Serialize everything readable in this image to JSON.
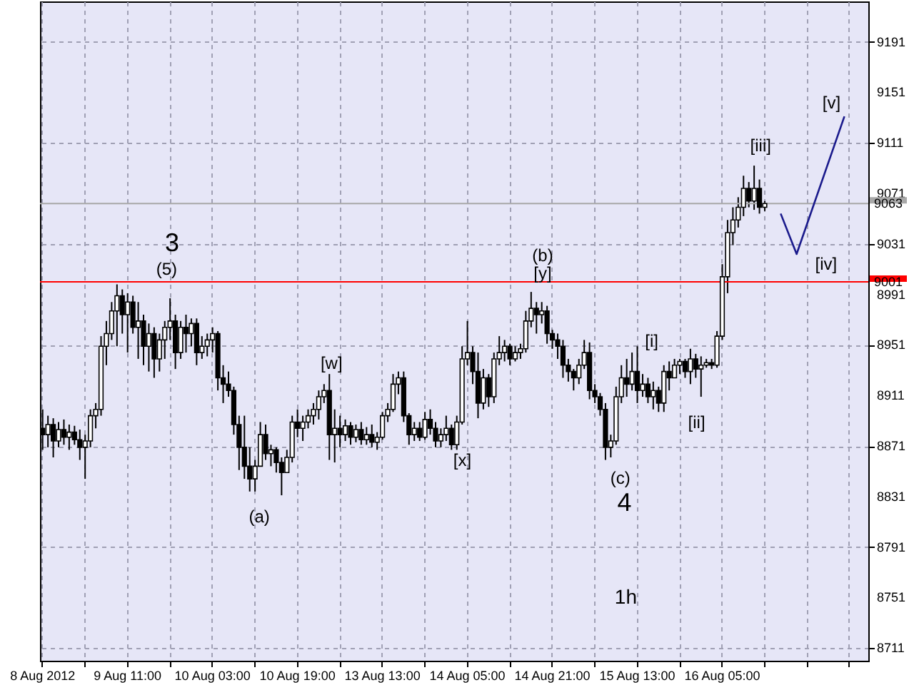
{
  "chart_data": {
    "type": "candlestick",
    "color": "#000000",
    "categories": [
      "8 Aug 2012",
      null,
      null,
      null,
      null,
      null,
      null,
      null,
      null,
      null,
      null,
      null,
      null,
      null,
      null,
      null,
      "9 Aug 11:00",
      null,
      null,
      null,
      null,
      null,
      null,
      null,
      null,
      null,
      null,
      null,
      null,
      null,
      null,
      null,
      "10 Aug 03:00",
      null,
      null,
      null,
      null,
      null,
      null,
      null,
      null,
      null,
      null,
      null,
      null,
      null,
      null,
      null,
      "10 Aug 19:00",
      null,
      null,
      null,
      null,
      null,
      null,
      null,
      null,
      null,
      null,
      null,
      null,
      null,
      null,
      null,
      "13 Aug 13:00",
      null,
      null,
      null,
      null,
      null,
      null,
      null,
      null,
      null,
      null,
      null,
      null,
      null,
      null,
      null,
      "14 Aug 05:00",
      null,
      null,
      null,
      null,
      null,
      null,
      null,
      null,
      null,
      null,
      null,
      null,
      null,
      null,
      null,
      "14 Aug 21:00",
      null,
      null,
      null,
      null,
      null,
      null,
      null,
      null,
      null,
      null,
      null,
      null,
      null,
      null,
      null,
      "15 Aug 13:00",
      null,
      null,
      null,
      null,
      null,
      null,
      null,
      null,
      null,
      null,
      null,
      null,
      null,
      null,
      null,
      "16 Aug 05:00",
      null,
      null,
      null,
      null,
      null,
      null,
      null,
      null,
      null,
      null,
      null,
      null,
      null,
      null,
      null,
      null,
      null,
      null,
      null,
      null,
      null,
      null,
      null,
      null,
      null,
      null,
      null
    ],
    "ohlc": [
      [
        8885,
        8900,
        8868,
        8880
      ],
      [
        8880,
        8895,
        8870,
        8888
      ],
      [
        8888,
        8893,
        8862,
        8875
      ],
      [
        8875,
        8890,
        8870,
        8884
      ],
      [
        8884,
        8892,
        8872,
        8878
      ],
      [
        8878,
        8888,
        8868,
        8882
      ],
      [
        8882,
        8887,
        8872,
        8876
      ],
      [
        8876,
        8884,
        8860,
        8870
      ],
      [
        8870,
        8880,
        8845,
        8875
      ],
      [
        8875,
        8900,
        8870,
        8895
      ],
      [
        8895,
        8905,
        8885,
        8900
      ],
      [
        8900,
        8958,
        8895,
        8950
      ],
      [
        8950,
        8970,
        8935,
        8960
      ],
      [
        8960,
        8985,
        8955,
        8978
      ],
      [
        8978,
        8999,
        8950,
        8990
      ],
      [
        8990,
        8995,
        8960,
        8975
      ],
      [
        8975,
        8992,
        8945,
        8985
      ],
      [
        8985,
        8990,
        8960,
        8965
      ],
      [
        8965,
        8985,
        8940,
        8970
      ],
      [
        8970,
        8975,
        8935,
        8950
      ],
      [
        8950,
        8968,
        8930,
        8960
      ],
      [
        8960,
        8965,
        8925,
        8940
      ],
      [
        8940,
        8960,
        8930,
        8955
      ],
      [
        8955,
        8970,
        8940,
        8965
      ],
      [
        8965,
        8988,
        8955,
        8970
      ],
      [
        8970,
        8975,
        8932,
        8945
      ],
      [
        8945,
        8970,
        8940,
        8965
      ],
      [
        8965,
        8975,
        8945,
        8960
      ],
      [
        8960,
        8972,
        8950,
        8968
      ],
      [
        8968,
        8972,
        8935,
        8945
      ],
      [
        8945,
        8958,
        8940,
        8950
      ],
      [
        8950,
        8960,
        8942,
        8955
      ],
      [
        8955,
        8965,
        8945,
        8960
      ],
      [
        8960,
        8962,
        8915,
        8925
      ],
      [
        8925,
        8935,
        8905,
        8920
      ],
      [
        8920,
        8930,
        8910,
        8915
      ],
      [
        8915,
        8918,
        8880,
        8888
      ],
      [
        8888,
        8895,
        8852,
        8870
      ],
      [
        8870,
        8895,
        8845,
        8855
      ],
      [
        8855,
        8870,
        8835,
        8845
      ],
      [
        8845,
        8860,
        8835,
        8855
      ],
      [
        8855,
        8890,
        8855,
        8880
      ],
      [
        8880,
        8888,
        8860,
        8865
      ],
      [
        8865,
        8872,
        8855,
        8868
      ],
      [
        8868,
        8870,
        8850,
        8858
      ],
      [
        8858,
        8862,
        8832,
        8850
      ],
      [
        8850,
        8868,
        8850,
        8862
      ],
      [
        8862,
        8895,
        8858,
        8890
      ],
      [
        8890,
        8900,
        8878,
        8885
      ],
      [
        8885,
        8895,
        8875,
        8890
      ],
      [
        8890,
        8900,
        8885,
        8895
      ],
      [
        8895,
        8905,
        8888,
        8900
      ],
      [
        8900,
        8915,
        8892,
        8910
      ],
      [
        8910,
        8920,
        8905,
        8915
      ],
      [
        8915,
        8928,
        8860,
        8880
      ],
      [
        8880,
        8900,
        8858,
        8885
      ],
      [
        8885,
        8895,
        8870,
        8880
      ],
      [
        8880,
        8892,
        8875,
        8887
      ],
      [
        8887,
        8890,
        8872,
        8878
      ],
      [
        8878,
        8888,
        8874,
        8884
      ],
      [
        8884,
        8890,
        8872,
        8876
      ],
      [
        8876,
        8886,
        8872,
        8880
      ],
      [
        8880,
        8888,
        8870,
        8874
      ],
      [
        8874,
        8882,
        8868,
        8878
      ],
      [
        8878,
        8898,
        8876,
        8895
      ],
      [
        8895,
        8905,
        8890,
        8900
      ],
      [
        8900,
        8928,
        8898,
        8920
      ],
      [
        8920,
        8930,
        8912,
        8925
      ],
      [
        8925,
        8930,
        8890,
        8895
      ],
      [
        8895,
        8897,
        8872,
        8880
      ],
      [
        8880,
        8890,
        8875,
        8885
      ],
      [
        8885,
        8890,
        8875,
        8878
      ],
      [
        8878,
        8898,
        8876,
        8892
      ],
      [
        8892,
        8900,
        8880,
        8885
      ],
      [
        8885,
        8890,
        8870,
        8875
      ],
      [
        8875,
        8885,
        8870,
        8880
      ],
      [
        8880,
        8895,
        8875,
        8885
      ],
      [
        8885,
        8888,
        8868,
        8872
      ],
      [
        8872,
        8895,
        8868,
        8890
      ],
      [
        8890,
        8950,
        8888,
        8940
      ],
      [
        8940,
        8970,
        8935,
        8945
      ],
      [
        8945,
        8950,
        8920,
        8930
      ],
      [
        8930,
        8945,
        8893,
        8905
      ],
      [
        8905,
        8932,
        8900,
        8925
      ],
      [
        8925,
        8928,
        8902,
        8910
      ],
      [
        8910,
        8945,
        8905,
        8940
      ],
      [
        8940,
        8958,
        8935,
        8945
      ],
      [
        8945,
        8955,
        8938,
        8950
      ],
      [
        8950,
        8952,
        8935,
        8940
      ],
      [
        8940,
        8950,
        8938,
        8945
      ],
      [
        8945,
        8952,
        8940,
        8948
      ],
      [
        8948,
        8978,
        8945,
        8970
      ],
      [
        8970,
        8993,
        8965,
        8980
      ],
      [
        8980,
        8985,
        8960,
        8975
      ],
      [
        8975,
        8985,
        8968,
        8978
      ],
      [
        8978,
        8982,
        8952,
        8960
      ],
      [
        8960,
        8963,
        8948,
        8955
      ],
      [
        8955,
        8960,
        8940,
        8950
      ],
      [
        8950,
        8955,
        8925,
        8935
      ],
      [
        8935,
        8940,
        8922,
        8930
      ],
      [
        8930,
        8932,
        8915,
        8925
      ],
      [
        8925,
        8940,
        8920,
        8935
      ],
      [
        8935,
        8955,
        8932,
        8945
      ],
      [
        8945,
        8953,
        8908,
        8915
      ],
      [
        8915,
        8920,
        8905,
        8910
      ],
      [
        8910,
        8913,
        8895,
        8900
      ],
      [
        8900,
        8905,
        8860,
        8870
      ],
      [
        8870,
        8880,
        8862,
        8875
      ],
      [
        8875,
        8918,
        8872,
        8910
      ],
      [
        8910,
        8935,
        8905,
        8925
      ],
      [
        8925,
        8940,
        8910,
        8920
      ],
      [
        8920,
        8945,
        8915,
        8930
      ],
      [
        8930,
        8950,
        8905,
        8915
      ],
      [
        8915,
        8928,
        8910,
        8920
      ],
      [
        8920,
        8925,
        8905,
        8910
      ],
      [
        8910,
        8922,
        8900,
        8915
      ],
      [
        8915,
        8918,
        8898,
        8905
      ],
      [
        8905,
        8935,
        8898,
        8930
      ],
      [
        8930,
        8938,
        8915,
        8925
      ],
      [
        8925,
        8940,
        8925,
        8935
      ],
      [
        8935,
        8940,
        8928,
        8938
      ],
      [
        8938,
        8940,
        8925,
        8930
      ],
      [
        8930,
        8948,
        8920,
        8940
      ],
      [
        8940,
        8944,
        8925,
        8932
      ],
      [
        8932,
        8942,
        8910,
        8935
      ],
      [
        8935,
        8940,
        8933,
        8937
      ],
      [
        8937,
        8940,
        8932,
        8935
      ],
      [
        8935,
        8962,
        8933,
        8958
      ],
      [
        8958,
        9015,
        8955,
        9005
      ],
      [
        9005,
        9050,
        8992,
        9040
      ],
      [
        9040,
        9060,
        9030,
        9050
      ],
      [
        9050,
        9068,
        9044,
        9060
      ],
      [
        9060,
        9085,
        9053,
        9075
      ],
      [
        9075,
        9080,
        9060,
        9065
      ],
      [
        9065,
        9093,
        9058,
        9075
      ],
      [
        9075,
        9082,
        9055,
        9060
      ],
      [
        9060,
        9065,
        9057,
        9063
      ],
      null,
      null,
      null,
      null,
      null,
      null,
      null,
      null,
      null,
      null,
      null,
      null,
      null,
      null,
      null,
      null,
      null,
      null,
      null
    ],
    "series": [
      {
        "type": "line",
        "color": "#1a1a8c",
        "values": [
          null,
          null,
          null,
          null,
          null,
          null,
          null,
          null,
          null,
          null,
          null,
          null,
          null,
          null,
          null,
          null,
          null,
          null,
          null,
          null,
          null,
          null,
          null,
          null,
          null,
          null,
          null,
          null,
          null,
          null,
          null,
          null,
          null,
          null,
          null,
          null,
          null,
          null,
          null,
          null,
          null,
          null,
          null,
          null,
          null,
          null,
          null,
          null,
          null,
          null,
          null,
          null,
          null,
          null,
          null,
          null,
          null,
          null,
          null,
          null,
          null,
          null,
          null,
          null,
          null,
          null,
          null,
          null,
          null,
          null,
          null,
          null,
          null,
          null,
          null,
          null,
          null,
          null,
          null,
          null,
          null,
          null,
          null,
          null,
          null,
          null,
          null,
          null,
          null,
          null,
          null,
          null,
          null,
          null,
          null,
          null,
          null,
          null,
          null,
          null,
          null,
          null,
          null,
          null,
          null,
          null,
          null,
          null,
          null,
          null,
          null,
          null,
          null,
          null,
          null,
          null,
          null,
          null,
          null,
          null,
          null,
          null,
          null,
          null,
          null,
          null,
          null,
          null,
          null,
          null,
          null,
          null,
          null,
          null,
          null,
          null,
          null,
          null,
          null,
          9055,
          null,
          null,
          9023,
          null,
          null,
          null,
          null,
          null,
          null,
          null,
          null,
          9132,
          null,
          null,
          null,
          null
        ]
      }
    ],
    "ylim": [
      8701,
      9223
    ],
    "yticks": [
      8711,
      8751,
      8791,
      8831,
      8871,
      8911,
      8951,
      8991,
      9031,
      9071,
      9111,
      9151,
      9191
    ],
    "grid": true,
    "ref_lines": [
      {
        "axis": "y",
        "value": 9001,
        "label": "9001",
        "color": "#ff0000"
      },
      {
        "axis": "y",
        "value": 9063,
        "label": "9063",
        "color": "#a8a8a8"
      }
    ],
    "annotations": [
      "3",
      "(5)",
      "(a)",
      "[w]",
      "[x]",
      "(b)",
      "[y]",
      "(c)",
      "4",
      "[i]",
      "[ii]",
      "[iii]",
      "[iv]",
      "[v]",
      "1h"
    ]
  }
}
